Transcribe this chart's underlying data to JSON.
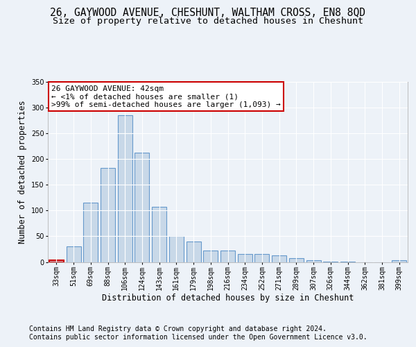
{
  "title_line1": "26, GAYWOOD AVENUE, CHESHUNT, WALTHAM CROSS, EN8 8QD",
  "title_line2": "Size of property relative to detached houses in Cheshunt",
  "xlabel": "Distribution of detached houses by size in Cheshunt",
  "ylabel": "Number of detached properties",
  "categories": [
    "33sqm",
    "51sqm",
    "69sqm",
    "88sqm",
    "106sqm",
    "124sqm",
    "143sqm",
    "161sqm",
    "179sqm",
    "198sqm",
    "216sqm",
    "234sqm",
    "252sqm",
    "271sqm",
    "289sqm",
    "307sqm",
    "326sqm",
    "344sqm",
    "362sqm",
    "381sqm",
    "399sqm"
  ],
  "values": [
    3,
    30,
    115,
    183,
    285,
    212,
    107,
    50,
    40,
    22,
    22,
    16,
    16,
    13,
    8,
    3,
    1,
    1,
    0,
    0,
    3
  ],
  "bar_color": "#c8d8e8",
  "bar_edge_color": "#6699cc",
  "highlight_bar_edge_color": "#cc0000",
  "annotation_box_text": "26 GAYWOOD AVENUE: 42sqm\n← <1% of detached houses are smaller (1)\n>99% of semi-detached houses are larger (1,093) →",
  "ylim": [
    0,
    350
  ],
  "yticks": [
    0,
    50,
    100,
    150,
    200,
    250,
    300,
    350
  ],
  "footer_line1": "Contains HM Land Registry data © Crown copyright and database right 2024.",
  "footer_line2": "Contains public sector information licensed under the Open Government Licence v3.0.",
  "bg_color": "#edf2f8",
  "plot_bg_color": "#edf2f8",
  "grid_color": "#ffffff",
  "title_fontsize": 10.5,
  "subtitle_fontsize": 9.5,
  "axis_label_fontsize": 8.5,
  "tick_fontsize": 7,
  "footer_fontsize": 7,
  "annotation_fontsize": 8
}
